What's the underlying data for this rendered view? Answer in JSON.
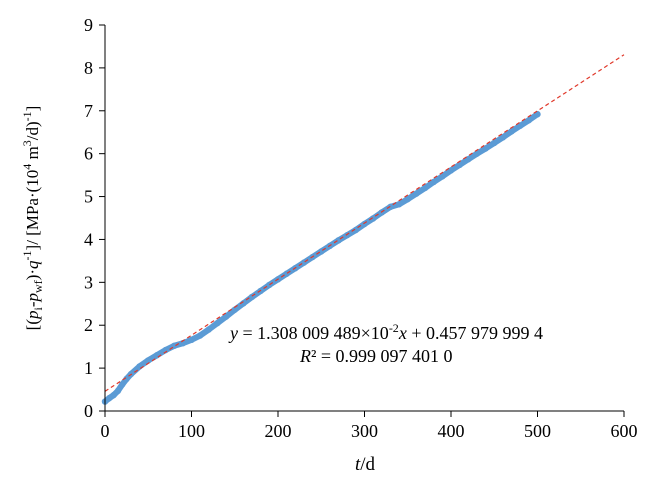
{
  "chart_data": {
    "type": "scatter",
    "xlabel": "t/d",
    "ylabel": "[(pi-pwf)·q-1]/ [MPa·(104 m3/d)-1]",
    "xlim": [
      0,
      600
    ],
    "ylim": [
      0,
      9
    ],
    "xticks": [
      0,
      100,
      200,
      300,
      400,
      500,
      600
    ],
    "yticks": [
      0,
      1,
      2,
      3,
      4,
      5,
      6,
      7,
      8,
      9
    ],
    "grid": false,
    "series": [
      {
        "kind": "scatter",
        "color": "#5b9bd5",
        "x": [
          0,
          5,
          10,
          15,
          20,
          25,
          30,
          40,
          50,
          60,
          70,
          80,
          90,
          100,
          110,
          120,
          130,
          140,
          150,
          160,
          170,
          180,
          190,
          200,
          210,
          220,
          230,
          240,
          250,
          260,
          270,
          280,
          290,
          300,
          310,
          320,
          330,
          340,
          350,
          360,
          370,
          380,
          390,
          400,
          410,
          420,
          430,
          440,
          450,
          460,
          470,
          480,
          490,
          500
        ],
        "y": [
          0.22,
          0.3,
          0.37,
          0.47,
          0.62,
          0.75,
          0.86,
          1.04,
          1.18,
          1.3,
          1.42,
          1.52,
          1.58,
          1.66,
          1.76,
          1.9,
          2.05,
          2.2,
          2.36,
          2.51,
          2.66,
          2.8,
          2.94,
          3.07,
          3.2,
          3.33,
          3.46,
          3.59,
          3.72,
          3.85,
          3.98,
          4.1,
          4.22,
          4.36,
          4.49,
          4.63,
          4.76,
          4.82,
          4.94,
          5.07,
          5.2,
          5.34,
          5.47,
          5.61,
          5.74,
          5.87,
          6.0,
          6.12,
          6.25,
          6.38,
          6.52,
          6.65,
          6.78,
          6.92
        ]
      },
      {
        "kind": "trendline",
        "style": "dashed",
        "color": "#e0382a",
        "slope": 0.01308009489,
        "intercept": 0.4579799994,
        "x_range": [
          0,
          600
        ]
      }
    ],
    "annotations": {
      "equation": "y = 1.308 009 489×10-2x + 0.457 979 999 4",
      "r2": "R² = 0.999 097 401 0"
    }
  }
}
